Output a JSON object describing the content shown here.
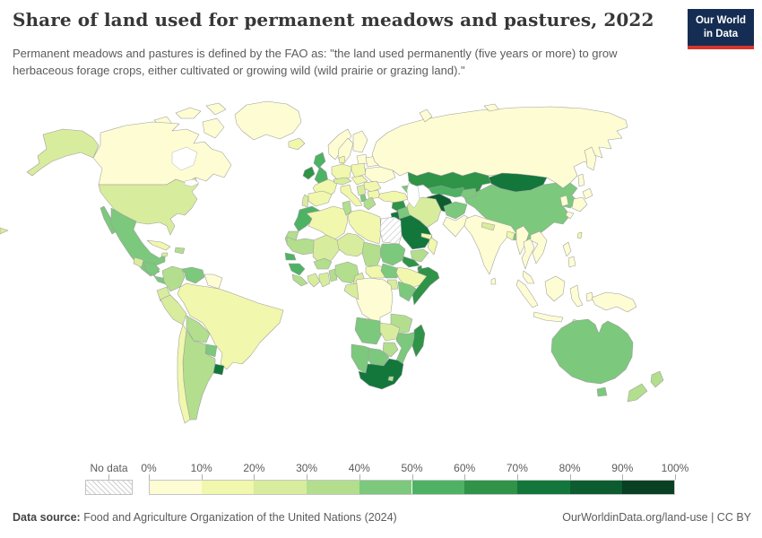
{
  "header": {
    "title": "Share of land used for permanent meadows and pastures, 2022",
    "subtitle": "Permanent meadows and pastures is defined by the FAO as: \"the land used permanently (five years or more) to grow herbaceous forage crops, either cultivated or growing wild (wild prairie or grazing land).\"",
    "logo": {
      "line1": "Our World",
      "line2": "in Data"
    }
  },
  "footer": {
    "source_label": "Data source:",
    "source_text": " Food and Agriculture Organization of the United Nations (2024)",
    "link_text": "OurWorldinData.org/land-use | CC BY"
  },
  "colors": {
    "logo_bg": "#152d52",
    "logo_accent": "#d8352f",
    "country_border": "#9e9e9e",
    "muted_text": "#5b5b5b",
    "title_text": "#373737"
  },
  "chart_data": {
    "type": "choropleth-map",
    "title": "Share of land used for permanent meadows and pastures, 2022",
    "year": "2022",
    "unit": "% of land area",
    "legend": {
      "no_data_label": "No data",
      "tick_labels": [
        "0%",
        "10%",
        "20%",
        "30%",
        "40%",
        "50%",
        "60%",
        "70%",
        "80%",
        "90%",
        "100%"
      ],
      "bin_labels": [
        "0-10%",
        "10-20%",
        "20-30%",
        "30-40%",
        "40-50%",
        "50-60%",
        "60-70%",
        "70-80%",
        "80-90%",
        "90-100%"
      ],
      "bin_colors": [
        "#fdfcd3",
        "#f1f7ac",
        "#d8ec9d",
        "#b2de8e",
        "#7cc87c",
        "#4eb265",
        "#2f9348",
        "#13773c",
        "#0d5c30",
        "#094023"
      ],
      "no_data_pattern": "diagonal-hatch"
    },
    "countries": [
      {
        "name": "Canada",
        "bin": "0-10%"
      },
      {
        "name": "United States",
        "bin": "20-30%"
      },
      {
        "name": "Greenland",
        "bin": "0-10%"
      },
      {
        "name": "Mexico",
        "bin": "40-50%"
      },
      {
        "name": "Guatemala",
        "bin": "20-30%"
      },
      {
        "name": "Honduras",
        "bin": "40-50%"
      },
      {
        "name": "Panama",
        "bin": "40-50%"
      },
      {
        "name": "Cuba",
        "bin": "10-20%"
      },
      {
        "name": "Dominican Republic",
        "bin": "30-40%"
      },
      {
        "name": "Jamaica",
        "bin": "20-30%"
      },
      {
        "name": "Colombia",
        "bin": "30-40%"
      },
      {
        "name": "Venezuela",
        "bin": "40-50%"
      },
      {
        "name": "Guyana",
        "bin": "0-10%"
      },
      {
        "name": "Brazil",
        "bin": "10-20%"
      },
      {
        "name": "Ecuador",
        "bin": "20-30%"
      },
      {
        "name": "Peru",
        "bin": "20-30%"
      },
      {
        "name": "Bolivia",
        "bin": "30-40%"
      },
      {
        "name": "Paraguay",
        "bin": "40-50%"
      },
      {
        "name": "Uruguay",
        "bin": "70-80%"
      },
      {
        "name": "Argentina",
        "bin": "30-40%"
      },
      {
        "name": "Chile",
        "bin": "10-20%"
      },
      {
        "name": "Iceland",
        "bin": "10-20%"
      },
      {
        "name": "Ireland",
        "bin": "60-70%"
      },
      {
        "name": "United Kingdom",
        "bin": "50-60%"
      },
      {
        "name": "Norway",
        "bin": "0-10%"
      },
      {
        "name": "Sweden",
        "bin": "0-10%"
      },
      {
        "name": "Finland",
        "bin": "0-10%"
      },
      {
        "name": "Lithuania",
        "bin": "0-10%"
      },
      {
        "name": "Denmark",
        "bin": "10-20%"
      },
      {
        "name": "Germany",
        "bin": "10-20%"
      },
      {
        "name": "Poland",
        "bin": "10-20%"
      },
      {
        "name": "Belarus",
        "bin": "0-10%"
      },
      {
        "name": "Ukraine",
        "bin": "0-10%"
      },
      {
        "name": "France",
        "bin": "10-20%"
      },
      {
        "name": "Spain",
        "bin": "10-20%"
      },
      {
        "name": "Portugal",
        "bin": "20-30%"
      },
      {
        "name": "Italy",
        "bin": "10-20%"
      },
      {
        "name": "Switzerland",
        "bin": "20-30%"
      },
      {
        "name": "Czechia",
        "bin": "10-20%"
      },
      {
        "name": "Romania",
        "bin": "10-20%"
      },
      {
        "name": "Serbia",
        "bin": "20-30%"
      },
      {
        "name": "Albania",
        "bin": "40-50%"
      },
      {
        "name": "Greece",
        "bin": "30-40%"
      },
      {
        "name": "Bulgaria",
        "bin": "10-20%"
      },
      {
        "name": "Turkey",
        "bin": "10-20%"
      },
      {
        "name": "Georgia",
        "bin": "40-50%"
      },
      {
        "name": "Russia",
        "bin": "0-10%"
      },
      {
        "name": "Kazakhstan",
        "bin": "60-70%"
      },
      {
        "name": "Mongolia",
        "bin": "70-80%"
      },
      {
        "name": "China",
        "bin": "40-50%"
      },
      {
        "name": "Turkmenistan",
        "bin": "80-90%"
      },
      {
        "name": "Uzbekistan",
        "bin": "50-60%"
      },
      {
        "name": "Kyrgyzstan",
        "bin": "40-50%"
      },
      {
        "name": "Afghanistan",
        "bin": "40-50%"
      },
      {
        "name": "Pakistan",
        "bin": "0-10%"
      },
      {
        "name": "India",
        "bin": "0-10%"
      },
      {
        "name": "Nepal",
        "bin": "20-30%"
      },
      {
        "name": "Bangladesh",
        "bin": "10-20%"
      },
      {
        "name": "Sri Lanka",
        "bin": "0-10%"
      },
      {
        "name": "Myanmar",
        "bin": "0-10%"
      },
      {
        "name": "Thailand",
        "bin": "0-10%"
      },
      {
        "name": "Vietnam",
        "bin": "0-10%"
      },
      {
        "name": "Malaysia",
        "bin": "0-10%"
      },
      {
        "name": "Indonesia",
        "bin": "0-10%"
      },
      {
        "name": "Philippines",
        "bin": "0-10%"
      },
      {
        "name": "Papua New Guinea",
        "bin": "0-10%"
      },
      {
        "name": "Japan",
        "bin": "0-10%"
      },
      {
        "name": "South Korea",
        "bin": "0-10%"
      },
      {
        "name": "Taiwan",
        "bin": "10-20%"
      },
      {
        "name": "Australia",
        "bin": "40-50%"
      },
      {
        "name": "New Zealand",
        "bin": "30-40%"
      },
      {
        "name": "Syria",
        "bin": "60-70%"
      },
      {
        "name": "Iraq",
        "bin": "40-50%"
      },
      {
        "name": "Jordan",
        "bin": "70-80%"
      },
      {
        "name": "Saudi Arabia",
        "bin": "70-80%"
      },
      {
        "name": "Yemen",
        "bin": "30-40%"
      },
      {
        "name": "Oman",
        "bin": "10-20%"
      },
      {
        "name": "United Arab Emirates",
        "bin": "10-20%"
      },
      {
        "name": "Iran",
        "bin": "20-30%"
      },
      {
        "name": "Morocco",
        "bin": "50-60%"
      },
      {
        "name": "Western Sahara",
        "bin": "30-40%"
      },
      {
        "name": "Algeria",
        "bin": "10-20%"
      },
      {
        "name": "Tunisia",
        "bin": "30-40%"
      },
      {
        "name": "Libya",
        "bin": "10-20%"
      },
      {
        "name": "Egypt",
        "bin": "No data"
      },
      {
        "name": "Mauritania",
        "bin": "30-40%"
      },
      {
        "name": "Mali",
        "bin": "20-30%"
      },
      {
        "name": "Senegal",
        "bin": "50-60%"
      },
      {
        "name": "Guinea",
        "bin": "50-60%"
      },
      {
        "name": "Sierra Leone",
        "bin": "30-40%"
      },
      {
        "name": "Ivory Coast",
        "bin": "20-30%"
      },
      {
        "name": "Ghana",
        "bin": "20-30%"
      },
      {
        "name": "Burkina Faso",
        "bin": "30-40%"
      },
      {
        "name": "Benin",
        "bin": "30-40%"
      },
      {
        "name": "Niger",
        "bin": "20-30%"
      },
      {
        "name": "Chad",
        "bin": "30-40%"
      },
      {
        "name": "Nigeria",
        "bin": "30-40%"
      },
      {
        "name": "Cameroon",
        "bin": "20-30%"
      },
      {
        "name": "Central African Republic",
        "bin": "10-20%"
      },
      {
        "name": "Sudan",
        "bin": "40-50%"
      },
      {
        "name": "South Sudan",
        "bin": "40-50%"
      },
      {
        "name": "Eritrea",
        "bin": "60-70%"
      },
      {
        "name": "Djibouti",
        "bin": "60-70%"
      },
      {
        "name": "Ethiopia",
        "bin": "10-20%"
      },
      {
        "name": "Somalia",
        "bin": "60-70%"
      },
      {
        "name": "Uganda",
        "bin": "20-30%"
      },
      {
        "name": "Kenya",
        "bin": "40-50%"
      },
      {
        "name": "DR Congo",
        "bin": "0-10%"
      },
      {
        "name": "Congo",
        "bin": "20-30%"
      },
      {
        "name": "Tanzania",
        "bin": "30-40%"
      },
      {
        "name": "Angola",
        "bin": "40-50%"
      },
      {
        "name": "Zambia",
        "bin": "20-30%"
      },
      {
        "name": "Mozambique",
        "bin": "40-50%"
      },
      {
        "name": "Zimbabwe",
        "bin": "30-40%"
      },
      {
        "name": "Botswana",
        "bin": "40-50%"
      },
      {
        "name": "Namibia",
        "bin": "40-50%"
      },
      {
        "name": "South Africa",
        "bin": "70-80%"
      },
      {
        "name": "Lesotho",
        "bin": "30-40%"
      },
      {
        "name": "Madagascar",
        "bin": "60-70%"
      }
    ]
  }
}
